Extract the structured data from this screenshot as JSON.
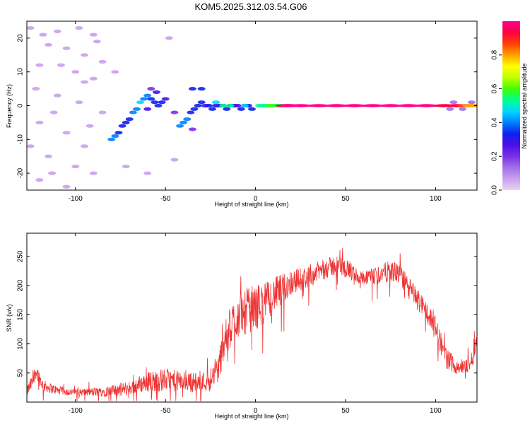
{
  "title": "KOM5.2025.312.03.54.G06",
  "chart_data": [
    {
      "type": "heatmap",
      "xlabel": "Height of straight line (km)",
      "ylabel": "Frequency (Hz)",
      "xlim": [
        -127,
        123
      ],
      "ylim": [
        -25,
        25
      ],
      "xticks": [
        -100,
        -50,
        0,
        50,
        100
      ],
      "yticks": [
        -20,
        -10,
        0,
        10,
        20
      ],
      "colorbar": {
        "label": "Normalized spectral amplitude",
        "range": [
          0,
          1
        ],
        "ticks": [
          0.0,
          0.2,
          0.4,
          0.6,
          0.8
        ],
        "tick_labels": [
          "0.0",
          "0.2",
          "0.4",
          "0.6",
          "0.8"
        ],
        "colors": [
          "#e8d4f4",
          "#c9a0ee",
          "#a070e8",
          "#7a30e8",
          "#4a10e8",
          "#1020f0",
          "#0080ff",
          "#00d8ff",
          "#00ff90",
          "#40ff00",
          "#c0ff00",
          "#ffff00",
          "#ffa000",
          "#ff4000",
          "#ff0040",
          "#ff0090"
        ]
      },
      "cells": [
        [
          -125,
          23,
          0.06
        ],
        [
          -118,
          21,
          0.05
        ],
        [
          -110,
          22,
          0.06
        ],
        [
          -98,
          23,
          0.05
        ],
        [
          -90,
          21,
          0.04
        ],
        [
          -115,
          18,
          0.06
        ],
        [
          -105,
          17,
          0.05
        ],
        [
          -95,
          15,
          0.06
        ],
        [
          -85,
          13,
          0.05
        ],
        [
          -120,
          12,
          0.05
        ],
        [
          -100,
          10,
          0.06
        ],
        [
          -90,
          8,
          0.05
        ],
        [
          -122,
          5,
          0.06
        ],
        [
          -110,
          3,
          0.05
        ],
        [
          -98,
          1,
          0.06
        ],
        [
          -85,
          -2,
          0.05
        ],
        [
          -120,
          -5,
          0.06
        ],
        [
          -105,
          -8,
          0.07
        ],
        [
          -95,
          -12,
          0.06
        ],
        [
          -115,
          -15,
          0.05
        ],
        [
          -100,
          -18,
          0.06
        ],
        [
          -90,
          -20,
          0.05
        ],
        [
          -120,
          -22,
          0.06
        ],
        [
          -105,
          -24,
          0.05
        ],
        [
          -125,
          -12,
          0.05
        ],
        [
          -112,
          -2,
          0.06
        ],
        [
          -78,
          10,
          0.05
        ],
        [
          -72,
          -18,
          0.05
        ],
        [
          -60,
          -20,
          0.04
        ],
        [
          -48,
          20,
          0.04
        ],
        [
          -45,
          -16,
          0.05
        ],
        [
          -95,
          7,
          0.05
        ],
        [
          -108,
          12,
          0.05
        ],
        [
          -113,
          -20,
          0.05
        ],
        [
          -88,
          19,
          0.04
        ],
        [
          -92,
          -6,
          0.05
        ],
        [
          -80,
          -10,
          0.38
        ],
        [
          -78,
          -9,
          0.42
        ],
        [
          -76,
          -8,
          0.35
        ],
        [
          -74,
          -6,
          0.33
        ],
        [
          -72,
          -5,
          0.3
        ],
        [
          -70,
          -4,
          0.35
        ],
        [
          -68,
          -2,
          0.4
        ],
        [
          -66,
          -1,
          0.42
        ],
        [
          -64,
          1,
          0.45
        ],
        [
          -62,
          2,
          0.4
        ],
        [
          -60,
          3,
          0.38
        ],
        [
          -58,
          2,
          0.3
        ],
        [
          -56,
          1,
          0.35
        ],
        [
          -54,
          0,
          0.32
        ],
        [
          -52,
          1,
          0.3
        ],
        [
          -50,
          2,
          0.28
        ],
        [
          -42,
          -6,
          0.4
        ],
        [
          -40,
          -5,
          0.42
        ],
        [
          -38,
          -4,
          0.38
        ],
        [
          -36,
          -2,
          0.35
        ],
        [
          -34,
          -1,
          0.32
        ],
        [
          -32,
          0,
          0.3
        ],
        [
          -30,
          1,
          0.3
        ],
        [
          -28,
          0,
          0.28
        ],
        [
          -26,
          0,
          0.3
        ],
        [
          -24,
          -1,
          0.32
        ],
        [
          -22,
          0,
          0.3
        ],
        [
          -20,
          0,
          0.28
        ],
        [
          -18,
          0,
          0.35
        ],
        [
          -16,
          -1,
          0.3
        ],
        [
          -14,
          0,
          0.32
        ],
        [
          -12,
          0,
          0.3
        ],
        [
          -10,
          0,
          0.28
        ],
        [
          -8,
          -1,
          0.3
        ],
        [
          -6,
          0,
          0.28
        ],
        [
          -4,
          0,
          0.32
        ],
        [
          -2,
          -1,
          0.3
        ],
        [
          -55,
          4,
          0.25
        ],
        [
          -58,
          5,
          0.22
        ],
        [
          -35,
          5,
          0.35
        ],
        [
          -30,
          5,
          0.3
        ],
        [
          -45,
          -2,
          0.22
        ],
        [
          -60,
          -1,
          0.25
        ],
        [
          -35,
          -7,
          0.2
        ],
        [
          -22,
          1,
          0.48
        ],
        [
          -18,
          0,
          0.52
        ],
        [
          -14,
          0,
          0.5
        ],
        [
          -6,
          0,
          0.45
        ],
        [
          2,
          0,
          0.5
        ],
        [
          4,
          0,
          0.52
        ],
        [
          6,
          0,
          0.55
        ],
        [
          8,
          0,
          0.58
        ],
        [
          10,
          0,
          0.6
        ],
        [
          12,
          0,
          0.55
        ],
        [
          14,
          0,
          0.5
        ],
        [
          16,
          0,
          0.7
        ],
        [
          17,
          0,
          0.85
        ],
        [
          18,
          0,
          0.95
        ],
        [
          19,
          0,
          1.0
        ],
        [
          25,
          0,
          1.0
        ],
        [
          35,
          0,
          1.0
        ],
        [
          45,
          0,
          1.0
        ],
        [
          55,
          0,
          1.0
        ],
        [
          65,
          0,
          1.0
        ],
        [
          75,
          0,
          1.0
        ],
        [
          85,
          0,
          1.0
        ],
        [
          95,
          0,
          1.0
        ],
        [
          105,
          0,
          0.95
        ],
        [
          112,
          0,
          0.9
        ],
        [
          118,
          0,
          0.85
        ],
        [
          121,
          0,
          0.8
        ],
        [
          110,
          1,
          0.15
        ],
        [
          115,
          -1,
          0.12
        ],
        [
          120,
          1,
          0.1
        ],
        [
          108,
          -1,
          0.15
        ]
      ]
    },
    {
      "type": "line",
      "xlabel": "Height of straight line (km)",
      "ylabel": "SNR (v/v)",
      "xlim": [
        -127,
        123
      ],
      "ylim": [
        0,
        290
      ],
      "xticks": [
        -100,
        -50,
        0,
        50,
        100
      ],
      "yticks": [
        50,
        100,
        150,
        200,
        250
      ],
      "color": "#ee3333",
      "envelope": {
        "x": [
          -127,
          -124,
          -122,
          -118,
          -110,
          -100,
          -90,
          -80,
          -70,
          -60,
          -50,
          -40,
          -30,
          -24,
          -20,
          -18,
          -15,
          -12,
          -8,
          -5,
          0,
          5,
          10,
          15,
          20,
          25,
          30,
          35,
          40,
          45,
          50,
          55,
          60,
          65,
          70,
          75,
          80,
          85,
          90,
          95,
          100,
          103,
          106,
          110,
          115,
          118,
          120,
          121,
          122,
          123
        ],
        "base": [
          15,
          30,
          50,
          25,
          18,
          15,
          15,
          16,
          20,
          30,
          32,
          30,
          28,
          35,
          55,
          90,
          110,
          130,
          140,
          145,
          150,
          160,
          175,
          185,
          200,
          205,
          210,
          220,
          225,
          230,
          225,
          215,
          205,
          210,
          215,
          220,
          215,
          190,
          170,
          150,
          120,
          95,
          70,
          60,
          55,
          60,
          65,
          80,
          90,
          100
        ],
        "amp": [
          20,
          25,
          30,
          20,
          15,
          12,
          15,
          20,
          25,
          35,
          40,
          35,
          35,
          45,
          55,
          60,
          70,
          75,
          75,
          80,
          80,
          70,
          60,
          55,
          45,
          40,
          35,
          35,
          35,
          35,
          35,
          30,
          30,
          30,
          35,
          35,
          35,
          40,
          40,
          40,
          40,
          40,
          35,
          30,
          25,
          30,
          35,
          40,
          45,
          50
        ]
      }
    }
  ]
}
